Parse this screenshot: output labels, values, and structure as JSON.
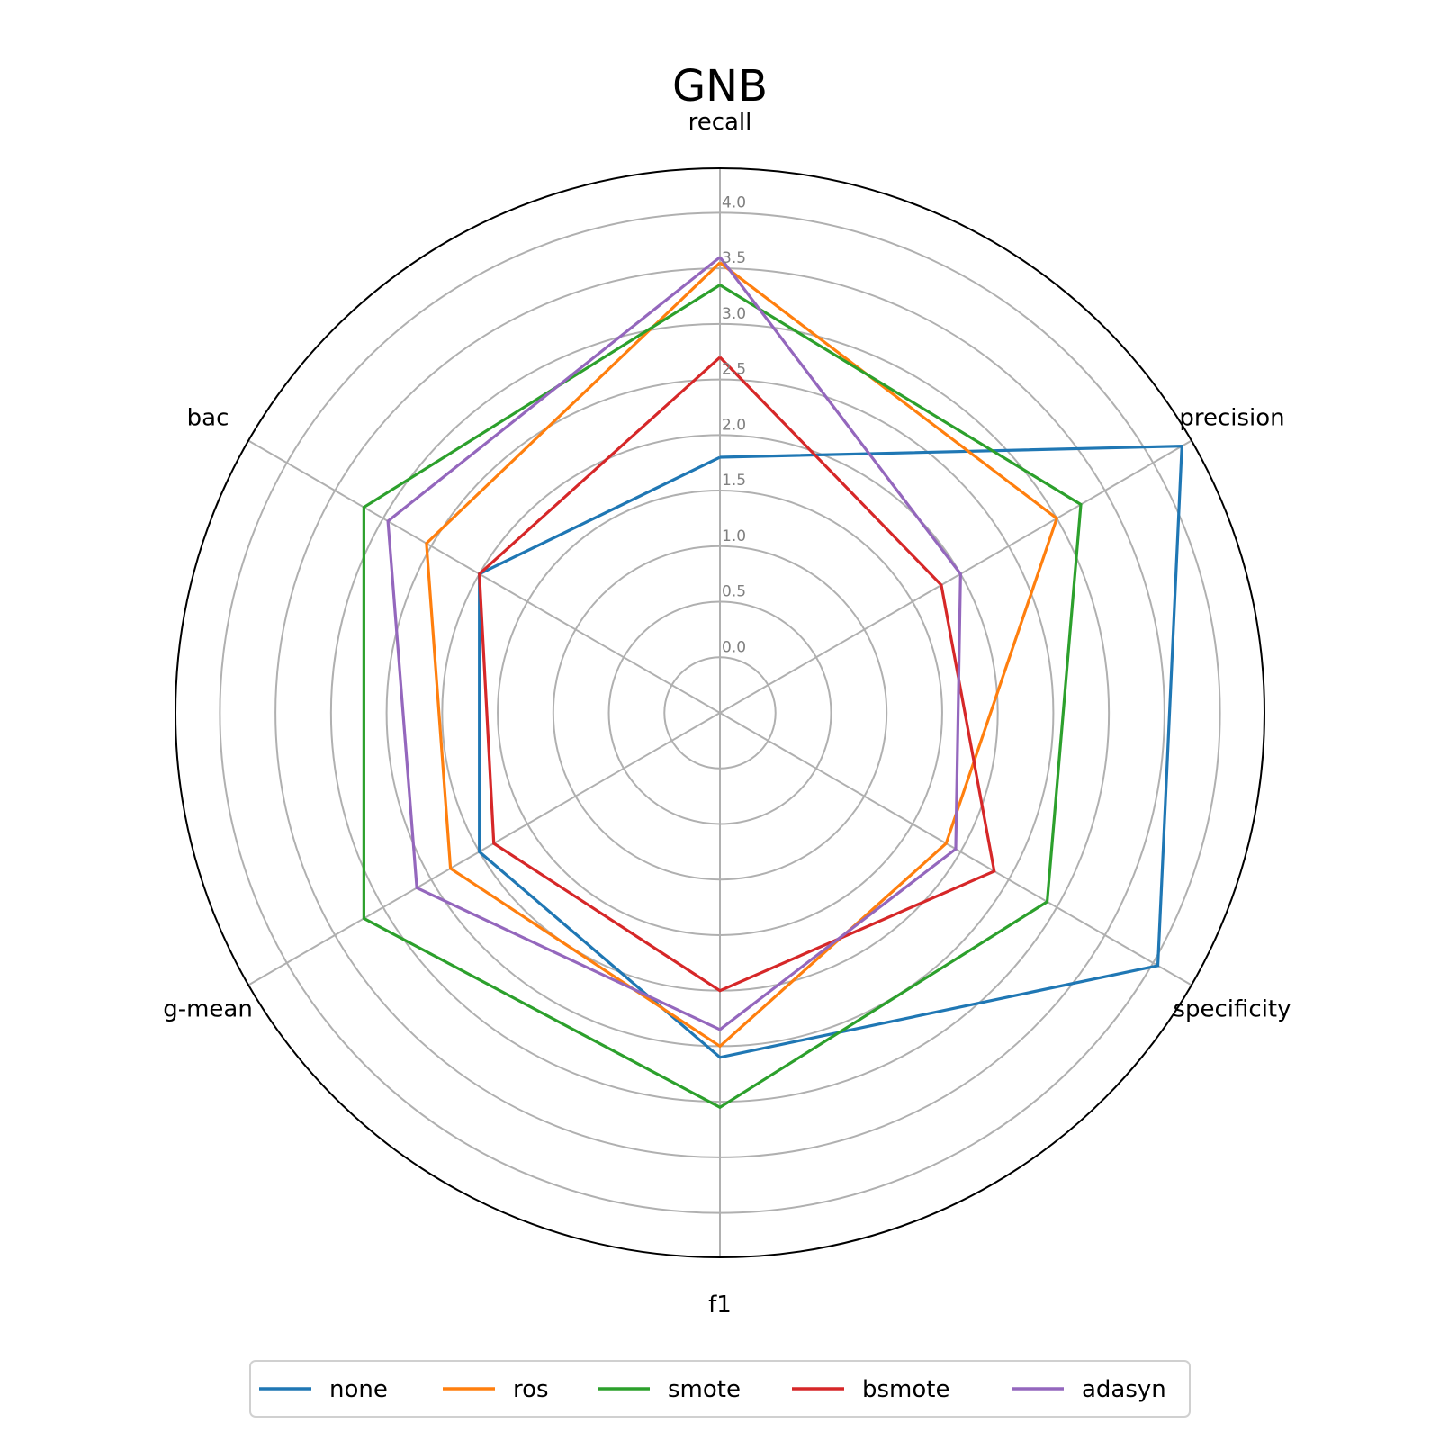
{
  "chart_data": {
    "type": "radar",
    "title": "GNB",
    "axes": [
      "recall",
      "precision",
      "specificity",
      "f1",
      "g-mean",
      "bac"
    ],
    "radial_ticks": [
      "0.0",
      "0.5",
      "1.0",
      "1.5",
      "2.0",
      "2.5",
      "3.0",
      "3.5",
      "4.0"
    ],
    "rlim": [
      -0.5,
      4.4
    ],
    "grid": true,
    "legend_position": "bottom-center",
    "series": [
      {
        "name": "none",
        "color": "#1f77b4",
        "values": [
          1.8,
          4.3,
          4.05,
          2.6,
          2.0,
          2.0
        ]
      },
      {
        "name": "ros",
        "color": "#ff7f0e",
        "values": [
          3.55,
          3.0,
          1.85,
          2.5,
          2.3,
          2.55
        ]
      },
      {
        "name": "smote",
        "color": "#2ca02c",
        "values": [
          3.35,
          3.25,
          2.9,
          3.05,
          3.2,
          3.2
        ]
      },
      {
        "name": "bsmote",
        "color": "#d62728",
        "values": [
          2.7,
          1.8,
          2.35,
          2.0,
          1.85,
          2.0
        ]
      },
      {
        "name": "adasyn",
        "color": "#9467bd",
        "values": [
          3.6,
          2.0,
          1.95,
          2.35,
          2.65,
          2.95
        ]
      }
    ]
  }
}
